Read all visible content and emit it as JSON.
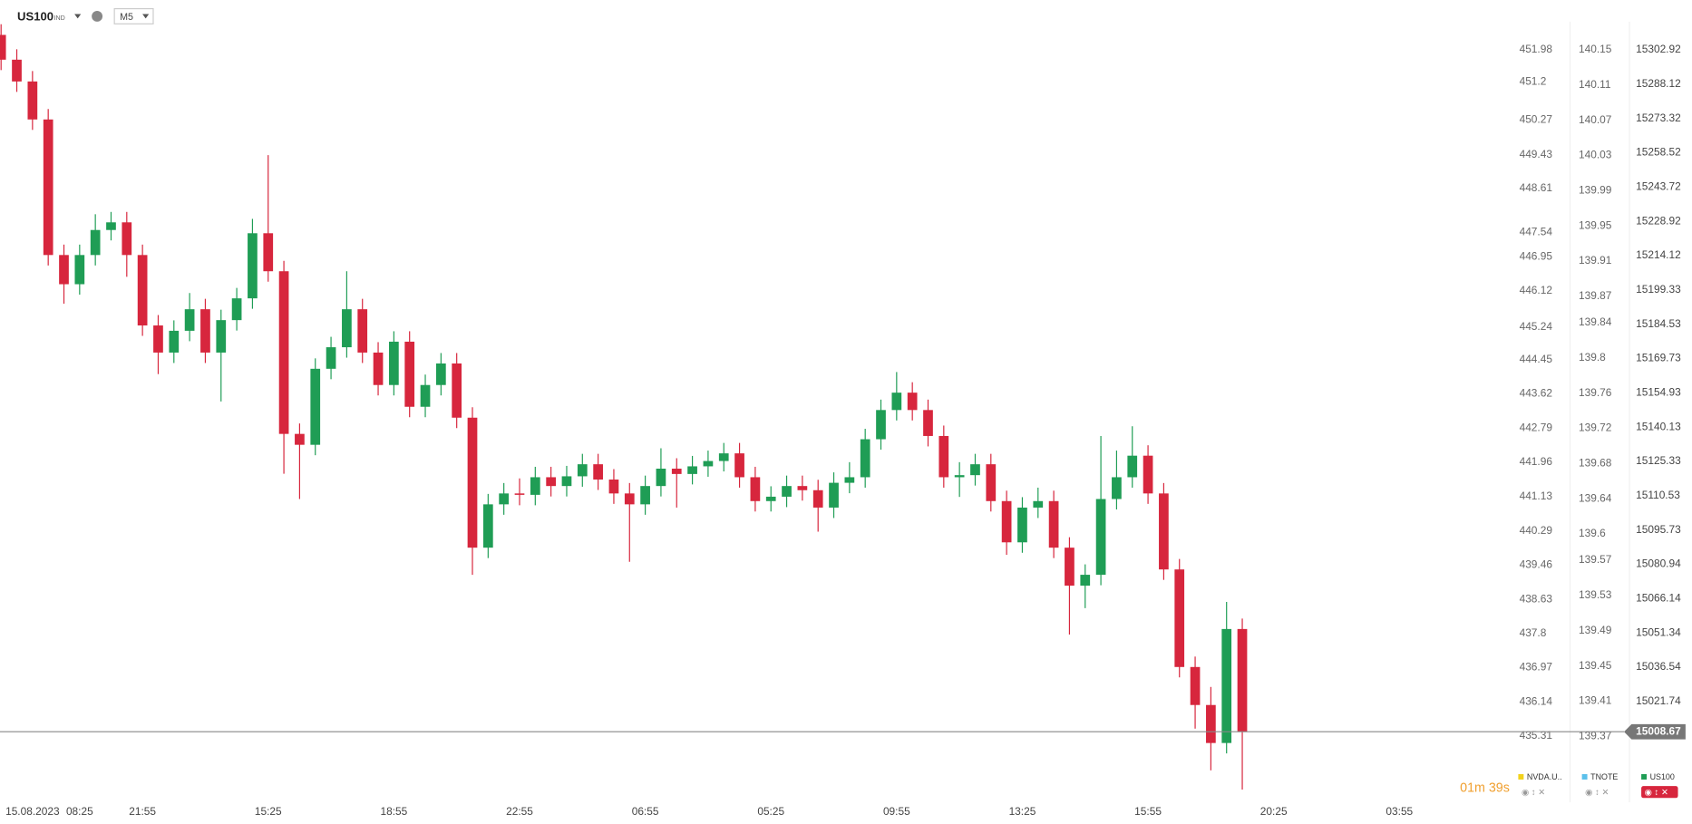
{
  "toolbar": {
    "symbol": "US100",
    "symbol_type": "IND",
    "timeframe": "M5"
  },
  "chart_data": {
    "type": "candlestick",
    "categories": [
      null,
      null,
      "15.08.2023",
      null,
      null,
      "08:25",
      null,
      null,
      null,
      "21:55",
      null,
      null,
      null,
      null,
      null,
      null,
      null,
      "15:25",
      null,
      null,
      null,
      null,
      null,
      null,
      null,
      "18:55",
      null,
      null,
      null,
      null,
      null,
      null,
      null,
      "22:55",
      null,
      null,
      null,
      null,
      null,
      null,
      null,
      "06:55",
      null,
      null,
      null,
      null,
      null,
      null,
      null,
      "05:25",
      null,
      null,
      null,
      null,
      null,
      null,
      null,
      "09:55",
      null,
      null,
      null,
      null,
      null,
      null,
      null,
      "13:25",
      null,
      null,
      null,
      null,
      null,
      null,
      null,
      "15:55",
      null,
      null,
      null,
      null,
      null,
      null,
      null,
      "20:25",
      null,
      null,
      null,
      null,
      null,
      null,
      null,
      "03:55"
    ],
    "series": [
      {
        "name": "US100",
        "up_color": "#1f9d55",
        "down_color": "#d7263d",
        "open": [
          15309.4,
          15298.7,
          15289.3,
          15272.9,
          15214.4,
          15201.8,
          15214.4,
          15225.2,
          15228.5,
          15214.4,
          15184.0,
          15172.3,
          15181.7,
          15191.0,
          15172.3,
          15186.3,
          15195.7,
          15223.8,
          15207.4,
          15137.2,
          15132.5,
          15165.3,
          15174.6,
          15191.0,
          15172.3,
          15158.3,
          15177.0,
          15148.9,
          15158.3,
          15167.6,
          15144.2,
          15088.1,
          15106.8,
          15111.5,
          15110.9,
          15118.5,
          15114.7,
          15118.9,
          15124.1,
          15117.5,
          15111.5,
          15106.8,
          15114.7,
          15122.2,
          15119.9,
          15123.2,
          15125.5,
          15128.8,
          15118.5,
          15108.2,
          15110.1,
          15114.7,
          15112.9,
          15105.4,
          15116.1,
          15118.5,
          15134.9,
          15147.5,
          15155.0,
          15147.5,
          15136.3,
          15118.5,
          15119.4,
          15124.1,
          15108.2,
          15090.4,
          15105.4,
          15108.2,
          15088.1,
          15071.7,
          15076.4,
          15109.1,
          15118.5,
          15127.8,
          15111.5,
          15078.7,
          15036.6,
          15020.2,
          15003.8,
          15053.0,
          null,
          null,
          null,
          null,
          null,
          null,
          null,
          null,
          null,
          null
        ],
        "high": [
          15314.0,
          15303.2,
          15293.8,
          15277.4,
          15218.9,
          15218.9,
          15232.0,
          15233.0,
          15233.0,
          15218.9,
          15188.5,
          15186.2,
          15198.0,
          15195.5,
          15190.8,
          15200.2,
          15230.0,
          15257.5,
          15211.9,
          15141.7,
          15169.8,
          15179.1,
          15207.4,
          15195.5,
          15176.8,
          15181.5,
          15181.5,
          15162.8,
          15172.1,
          15172.1,
          15148.7,
          15111.3,
          15116.0,
          15118.0,
          15123.0,
          15123.0,
          15123.4,
          15128.6,
          15128.6,
          15122.0,
          15116.0,
          15119.2,
          15131.0,
          15126.7,
          15127.7,
          15130.0,
          15133.3,
          15133.3,
          15123.0,
          15114.6,
          15119.2,
          15119.2,
          15117.4,
          15120.6,
          15125.0,
          15139.4,
          15152.0,
          15163.9,
          15159.5,
          15152.0,
          15140.8,
          15125.0,
          15128.6,
          15128.6,
          15112.7,
          15109.9,
          15114.0,
          15112.7,
          15092.6,
          15080.9,
          15136.3,
          15130.0,
          15140.5,
          15132.3,
          15116.0,
          15083.2,
          15041.1,
          15028.0,
          15064.7,
          15057.5,
          null,
          null,
          null,
          null,
          null,
          null,
          null,
          null,
          null,
          null
        ],
        "low": [
          15294.2,
          15284.8,
          15268.4,
          15209.9,
          15193.4,
          15197.3,
          15209.9,
          15220.7,
          15205.0,
          15179.5,
          15163.0,
          15167.8,
          15177.2,
          15167.8,
          15151.2,
          15181.8,
          15191.2,
          15202.9,
          15120.0,
          15109.1,
          15128.0,
          15160.8,
          15170.1,
          15167.8,
          15153.8,
          15153.8,
          15144.4,
          15144.4,
          15153.8,
          15139.7,
          15076.4,
          15083.6,
          15102.3,
          15106.4,
          15106.4,
          15110.2,
          15110.2,
          15114.4,
          15113.0,
          15107.0,
          15082.0,
          15102.3,
          15110.2,
          15105.4,
          15115.4,
          15118.7,
          15121.0,
          15114.0,
          15103.7,
          15103.7,
          15105.6,
          15108.4,
          15095.0,
          15100.9,
          15111.6,
          15114.0,
          15130.4,
          15143.0,
          15143.0,
          15131.8,
          15114.0,
          15110.0,
          15114.9,
          15103.7,
          15085.0,
          15085.9,
          15100.9,
          15083.6,
          15050.6,
          15062.0,
          15071.9,
          15104.6,
          15114.0,
          15107.0,
          15074.2,
          15032.1,
          15010.0,
          14992.0,
          14999.3,
          14983.7,
          null,
          null,
          null,
          null,
          null,
          null,
          null,
          null,
          null,
          null
        ],
        "close": [
          15298.7,
          15289.3,
          15272.9,
          15214.4,
          15201.8,
          15214.4,
          15225.2,
          15228.5,
          15214.4,
          15184.0,
          15172.3,
          15181.7,
          15191.0,
          15172.3,
          15186.3,
          15195.7,
          15223.8,
          15207.4,
          15137.2,
          15132.5,
          15165.3,
          15174.6,
          15191.0,
          15172.3,
          15158.3,
          15177.0,
          15148.9,
          15158.3,
          15167.6,
          15144.2,
          15088.1,
          15106.8,
          15111.5,
          15110.9,
          15118.5,
          15114.7,
          15118.9,
          15124.1,
          15117.5,
          15111.5,
          15106.8,
          15114.7,
          15122.2,
          15119.9,
          15123.2,
          15125.5,
          15128.8,
          15118.5,
          15108.2,
          15110.1,
          15114.7,
          15112.9,
          15105.4,
          15116.1,
          15118.5,
          15134.9,
          15147.5,
          15155.0,
          15147.5,
          15136.3,
          15118.5,
          15119.4,
          15124.1,
          15108.2,
          15090.4,
          15105.4,
          15108.2,
          15088.1,
          15071.7,
          15076.4,
          15109.1,
          15118.5,
          15127.8,
          15111.5,
          15078.7,
          15036.6,
          15020.2,
          15003.8,
          15053.0,
          15008.67,
          null,
          null,
          null,
          null,
          null,
          null,
          null,
          null,
          null,
          null
        ]
      }
    ],
    "ylim": [
      14978.2,
      15315.1
    ],
    "yticks": [
      15302.92,
      15288.12,
      15273.32,
      15258.52,
      15243.72,
      15228.92,
      15214.12,
      15199.33,
      15184.53,
      15169.73,
      15154.93,
      15140.13,
      15125.33,
      15110.53,
      15095.73,
      15080.94,
      15066.14,
      15051.34,
      15036.54,
      15021.74
    ],
    "current_price": 15008.67,
    "overlay_axes": [
      {
        "ylim": [
          433.7,
          452.66
        ],
        "yticks": [
          451.98,
          451.2,
          450.27,
          449.43,
          448.61,
          447.54,
          446.95,
          446.12,
          445.24,
          444.45,
          443.62,
          442.79,
          441.96,
          441.13,
          440.29,
          439.46,
          438.63,
          437.8,
          436.97,
          436.14,
          435.31
        ]
      },
      {
        "ylim": [
          139.295,
          140.182
        ],
        "yticks": [
          140.15,
          140.11,
          140.07,
          140.03,
          139.99,
          139.95,
          139.91,
          139.87,
          139.84,
          139.8,
          139.76,
          139.72,
          139.68,
          139.64,
          139.6,
          139.57,
          139.53,
          139.49,
          139.45,
          139.41,
          139.37
        ]
      }
    ]
  },
  "timer": "01m 39s",
  "instruments": [
    {
      "name": "NVDA.U..",
      "color": "#f2d21b"
    },
    {
      "name": "TNOTE",
      "color": "#5bc0eb"
    },
    {
      "name": "US100",
      "color": "#1f9d55"
    }
  ]
}
